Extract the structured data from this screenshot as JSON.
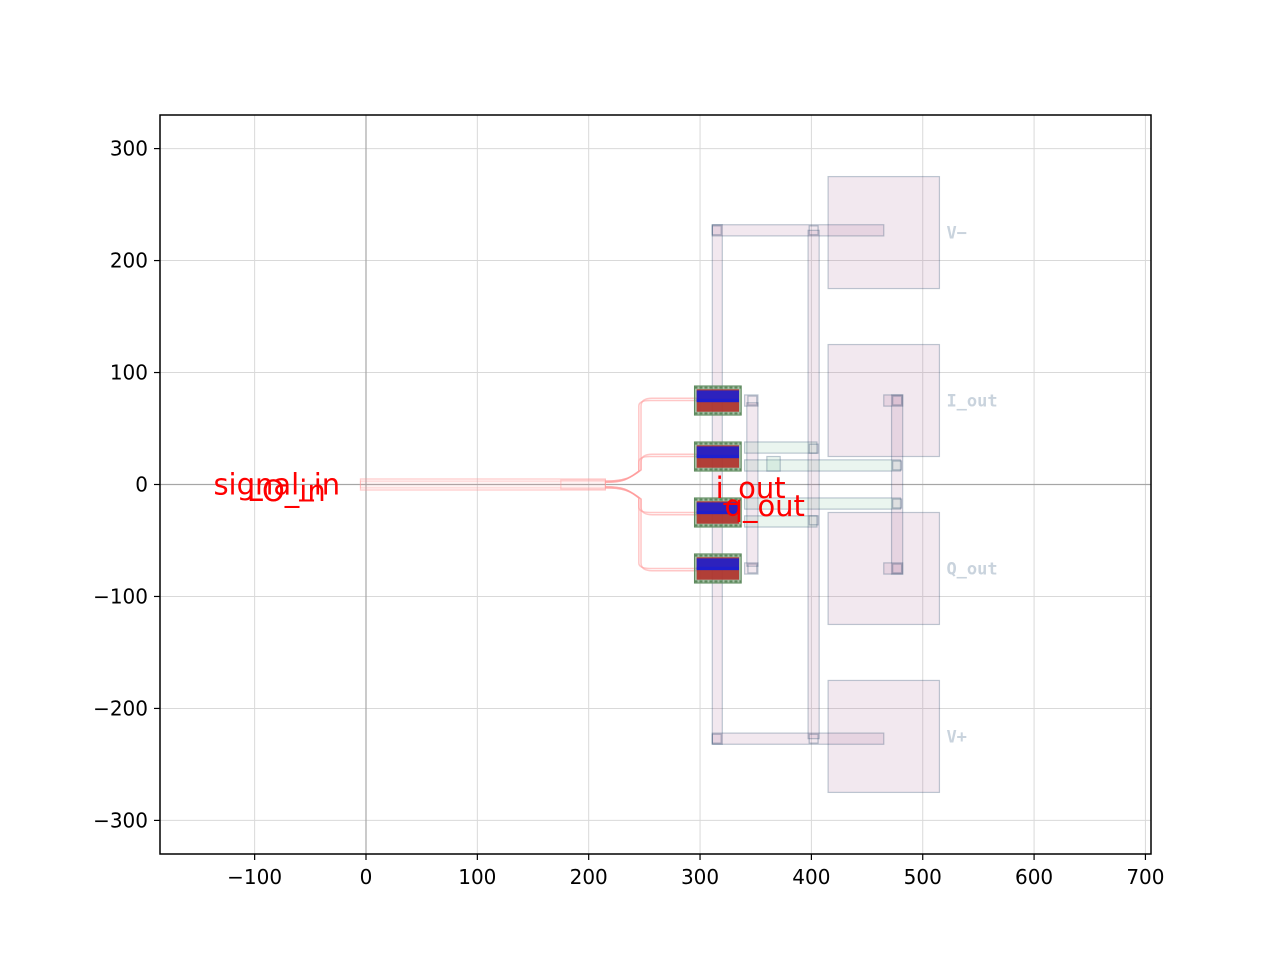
{
  "chart_data": {
    "type": "layout",
    "title": "",
    "xlabel": "",
    "ylabel": "",
    "xlim": [
      -185,
      705
    ],
    "ylim": [
      -330,
      330
    ],
    "grid": true,
    "x_ticks": [
      -100,
      0,
      100,
      200,
      300,
      400,
      500,
      600,
      700
    ],
    "y_ticks": [
      300,
      200,
      100,
      0,
      -100,
      -200,
      -300
    ],
    "x_tick_labels": [
      "−100",
      "0",
      "100",
      "200",
      "300",
      "400",
      "500",
      "600",
      "700"
    ],
    "y_tick_labels": [
      "300",
      "200",
      "100",
      "0",
      "−100",
      "−200",
      "−300"
    ],
    "pads": [
      {
        "label": "V−",
        "x0": 415,
        "x1": 515,
        "y0": 175,
        "y1": 275,
        "label_y": 225
      },
      {
        "label": "I_out",
        "x0": 415,
        "x1": 515,
        "y0": 25,
        "y1": 125,
        "label_y": 75
      },
      {
        "label": "Q_out",
        "x0": 415,
        "x1": 515,
        "y0": -125,
        "y1": -25,
        "label_y": -75
      },
      {
        "label": "V+",
        "x0": 415,
        "x1": 515,
        "y0": -275,
        "y1": -175,
        "label_y": -225
      }
    ],
    "ports": [
      {
        "label": "signal_in",
        "x": -137,
        "y": 0
      },
      {
        "label": "LO_in",
        "x": -107,
        "y": -6
      },
      {
        "label": "i_out",
        "x": 314,
        "y": -3
      },
      {
        "label": "q_out",
        "x": 322,
        "y": -19
      }
    ],
    "detectors_y": [
      75,
      25,
      -25,
      -75
    ],
    "colors": {
      "port_label": "#ff0000",
      "waveguide": "#ff9999",
      "metal_fill": "#9c4a87",
      "metal_edge": "#2f4f6f",
      "via_fill": "#4fa97d",
      "diode_blue": "#1f1fcc",
      "diode_red": "#b2312b",
      "diode_green": "#5d8a5d",
      "pad_label": "#c9d3dd"
    }
  }
}
